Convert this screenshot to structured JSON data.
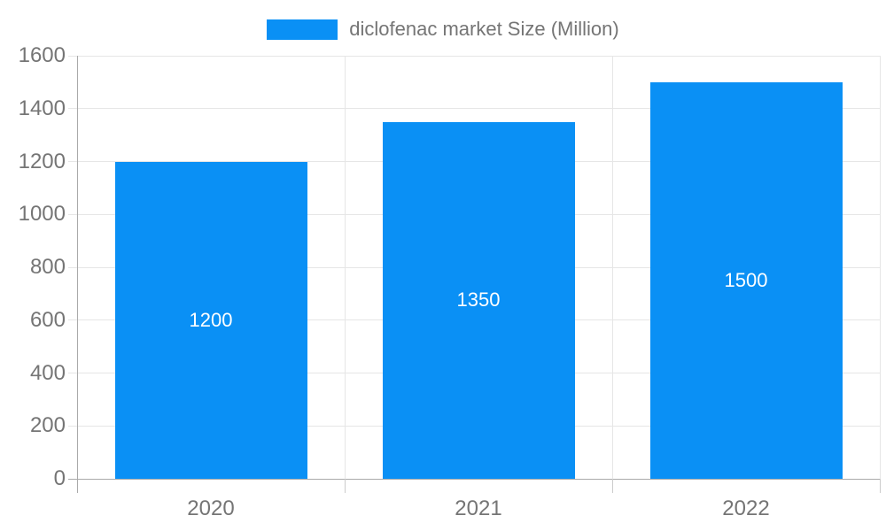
{
  "chart_data": {
    "type": "bar",
    "title": "",
    "categories": [
      "2020",
      "2021",
      "2022"
    ],
    "series": [
      {
        "name": "diclofenac market Size (Million)",
        "values": [
          1200,
          1350,
          1500
        ]
      }
    ],
    "value_labels": [
      "1200",
      "1350",
      "1500"
    ],
    "xlabel": "",
    "ylabel": "",
    "ylim": [
      0,
      1600
    ],
    "ytick_step": 200,
    "yticks": [
      0,
      200,
      400,
      600,
      800,
      1000,
      1200,
      1400,
      1600
    ],
    "grid": true,
    "legend_position": "top",
    "colors": {
      "bar": "#0a90f5",
      "value_label": "#ffffff",
      "axis_text": "#757575",
      "gridline": "#e6e6e6",
      "axis_line": "#aaaaaa",
      "boundary_tick": "#cccccc",
      "background": "#ffffff"
    }
  }
}
